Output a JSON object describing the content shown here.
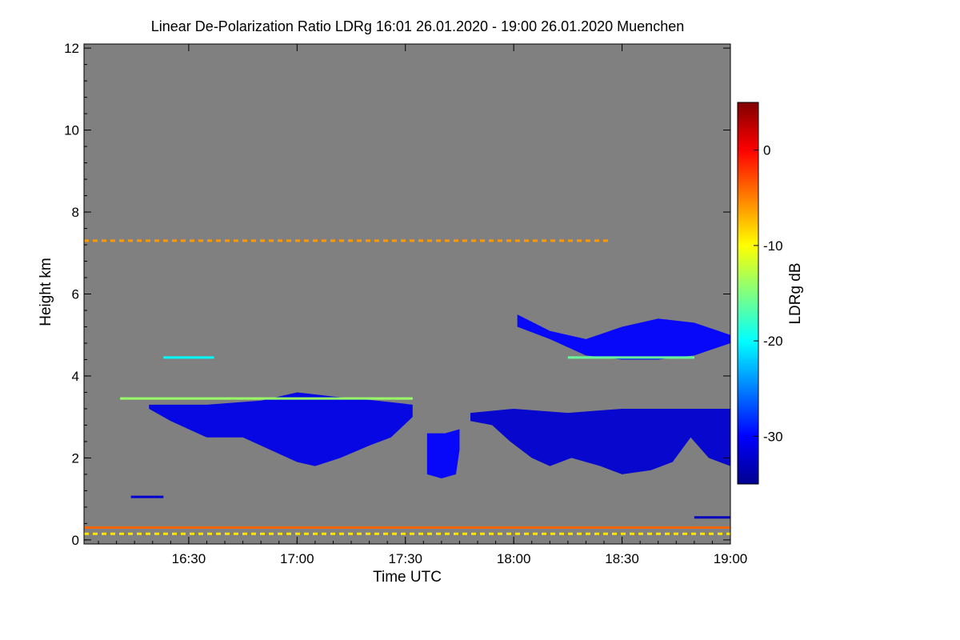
{
  "chart_data": {
    "type": "heatmap",
    "title": "Linear De-Polarization Ratio LDRg   16:01 26.01.2020 - 19:00 26.01.2020 Muenchen",
    "xlabel": "Time UTC",
    "ylabel": "Height km",
    "x_unit": "minutes since 16:00 UTC",
    "xlim": [
      1,
      180
    ],
    "ylim": [
      -0.1,
      12.1
    ],
    "x_ticks": [
      {
        "value": 30,
        "label": "16:30"
      },
      {
        "value": 60,
        "label": "17:00"
      },
      {
        "value": 90,
        "label": "17:30"
      },
      {
        "value": 120,
        "label": "18:00"
      },
      {
        "value": 150,
        "label": "18:30"
      },
      {
        "value": 180,
        "label": "19:00"
      }
    ],
    "y_ticks": [
      {
        "value": 0,
        "label": "0"
      },
      {
        "value": 2,
        "label": "2"
      },
      {
        "value": 4,
        "label": "4"
      },
      {
        "value": 6,
        "label": "6"
      },
      {
        "value": 8,
        "label": "8"
      },
      {
        "value": 10,
        "label": "10"
      },
      {
        "value": 12,
        "label": "12"
      }
    ],
    "background_color": "#808080",
    "colorbar": {
      "label": "LDRg dB",
      "range": [
        -35,
        5
      ],
      "ticks": [
        {
          "value": 0,
          "label": "0"
        },
        {
          "value": -10,
          "label": "-10"
        },
        {
          "value": -20,
          "label": "-20"
        },
        {
          "value": -30,
          "label": "-30"
        }
      ],
      "colors": [
        "#00008f",
        "#0000ff",
        "#0080ff",
        "#00ffff",
        "#80ff80",
        "#ffff00",
        "#ff8000",
        "#ff0000",
        "#800000"
      ]
    },
    "features": [
      {
        "name": "lower cloud layer A",
        "type": "cloud",
        "top": [
          [
            19,
            3.3
          ],
          [
            25,
            3.3
          ],
          [
            35,
            3.3
          ],
          [
            50,
            3.4
          ],
          [
            60,
            3.6
          ],
          [
            70,
            3.5
          ],
          [
            82,
            3.4
          ],
          [
            92,
            3.3
          ]
        ],
        "bottom": [
          [
            19,
            3.2
          ],
          [
            25,
            2.9
          ],
          [
            35,
            2.5
          ],
          [
            45,
            2.5
          ],
          [
            55,
            2.1
          ],
          [
            60,
            1.9
          ],
          [
            65,
            1.8
          ],
          [
            72,
            2.0
          ],
          [
            80,
            2.3
          ],
          [
            86,
            2.5
          ],
          [
            92,
            3.0
          ]
        ],
        "ldr": -31
      },
      {
        "name": "lower cloud layer B",
        "type": "cloud",
        "top": [
          [
            108,
            3.1
          ],
          [
            120,
            3.2
          ],
          [
            135,
            3.1
          ],
          [
            150,
            3.2
          ],
          [
            165,
            3.2
          ],
          [
            180,
            3.2
          ]
        ],
        "bottom": [
          [
            108,
            2.9
          ],
          [
            114,
            2.8
          ],
          [
            119,
            2.4
          ],
          [
            125,
            2.0
          ],
          [
            130,
            1.8
          ],
          [
            136,
            2.0
          ],
          [
            144,
            1.8
          ],
          [
            150,
            1.6
          ],
          [
            158,
            1.7
          ],
          [
            164,
            1.9
          ],
          [
            169,
            2.5
          ],
          [
            174,
            2.0
          ],
          [
            180,
            1.8
          ]
        ],
        "ldr": -32
      },
      {
        "name": "precipitation streak",
        "type": "cloud",
        "top": [
          [
            96,
            2.6
          ],
          [
            101,
            2.6
          ],
          [
            105,
            2.7
          ]
        ],
        "bottom": [
          [
            96,
            1.6
          ],
          [
            100,
            1.5
          ],
          [
            104,
            1.6
          ],
          [
            105,
            2.2
          ]
        ],
        "ldr": -30
      },
      {
        "name": "upper cloud layer",
        "type": "cloud",
        "top": [
          [
            121,
            5.5
          ],
          [
            130,
            5.1
          ],
          [
            140,
            4.9
          ],
          [
            150,
            5.2
          ],
          [
            160,
            5.4
          ],
          [
            170,
            5.3
          ],
          [
            180,
            5.0
          ]
        ],
        "bottom": [
          [
            121,
            5.2
          ],
          [
            130,
            4.9
          ],
          [
            140,
            4.5
          ],
          [
            150,
            4.4
          ],
          [
            160,
            4.4
          ],
          [
            170,
            4.5
          ],
          [
            180,
            4.8
          ]
        ],
        "ldr": -30
      },
      {
        "name": "upper cloud base",
        "type": "line",
        "height": 4.45,
        "x_range": [
          135,
          170
        ],
        "ldr": -16
      },
      {
        "name": "cloud-top sparkle A",
        "type": "line",
        "height": 3.45,
        "x_range": [
          11,
          92
        ],
        "ldr": -14
      },
      {
        "name": "sparkle 4.5 km",
        "type": "line",
        "height": 4.45,
        "x_range": [
          23,
          37
        ],
        "ldr": -20
      },
      {
        "name": "layer 7.3 km",
        "type": "line",
        "height": 7.3,
        "x_range": [
          1,
          147
        ],
        "ldr": -6,
        "dashed": true
      },
      {
        "name": "near-ground band",
        "type": "line",
        "height": 0.3,
        "x_range": [
          1,
          180
        ],
        "ldr": -4
      },
      {
        "name": "near-ground band low",
        "type": "line",
        "height": 0.15,
        "x_range": [
          1,
          180
        ],
        "ldr": -9,
        "dashed": true
      },
      {
        "name": "near-ground blue",
        "type": "line",
        "height": 0.55,
        "x_range": [
          170,
          180
        ],
        "ldr": -33
      },
      {
        "name": "low blue segment",
        "type": "line",
        "height": 1.05,
        "x_range": [
          14,
          23
        ],
        "ldr": -32
      }
    ]
  }
}
